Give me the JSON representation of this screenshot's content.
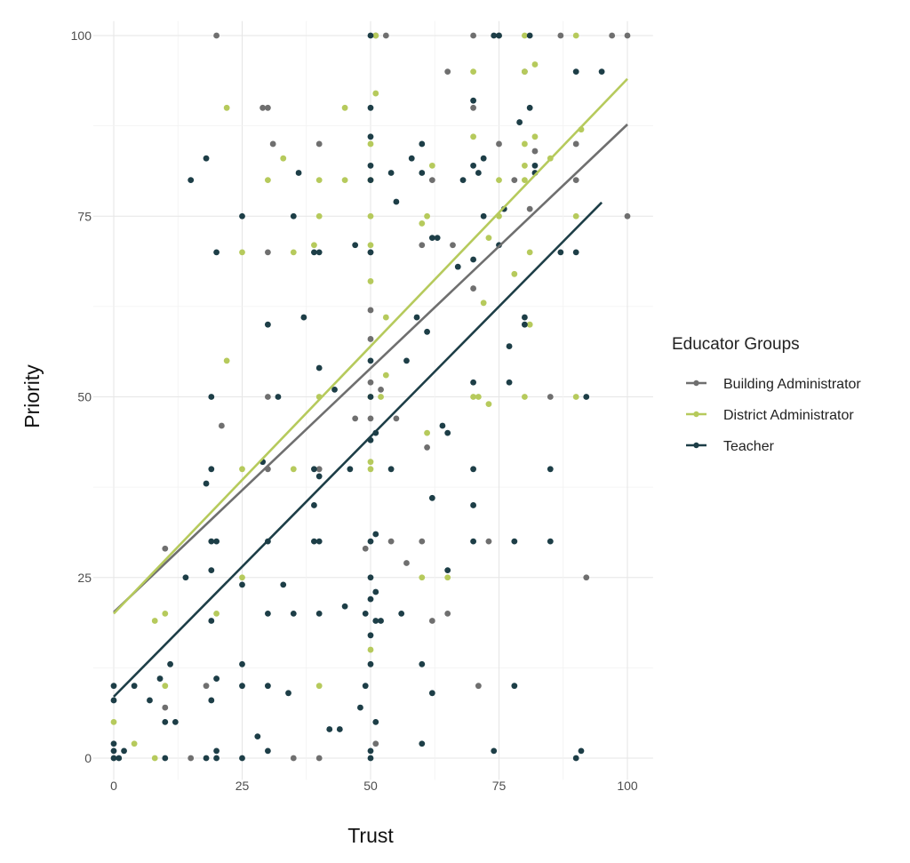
{
  "chart_data": {
    "type": "scatter",
    "title": "",
    "xlabel": "Trust",
    "ylabel": "Priority",
    "xlim": [
      -4,
      105
    ],
    "ylim": [
      -3,
      102
    ],
    "xticks": [
      0,
      25,
      50,
      75,
      100
    ],
    "yticks": [
      0,
      25,
      50,
      75,
      100
    ],
    "xtick_labels": [
      "0",
      "25",
      "50",
      "75",
      "100"
    ],
    "ytick_labels": [
      "0",
      "25",
      "50",
      "75",
      "100"
    ],
    "grid": true,
    "legend": {
      "title": "Educator Groups",
      "placement": "right"
    },
    "series": [
      {
        "name": "Building Administrator",
        "color": "#6f6f6f",
        "fit": {
          "intercept": 20.2,
          "slope": 0.675,
          "x_range": [
            0,
            100
          ]
        },
        "points": [
          [
            10,
            29
          ],
          [
            10,
            7
          ],
          [
            15,
            0
          ],
          [
            18,
            10
          ],
          [
            20,
            100
          ],
          [
            21,
            46
          ],
          [
            29,
            90
          ],
          [
            30,
            90
          ],
          [
            30,
            70
          ],
          [
            30,
            50
          ],
          [
            30,
            40
          ],
          [
            31,
            85
          ],
          [
            35,
            0
          ],
          [
            40,
            85
          ],
          [
            40,
            0
          ],
          [
            40,
            40
          ],
          [
            47,
            47
          ],
          [
            49,
            29
          ],
          [
            50,
            70
          ],
          [
            50,
            62
          ],
          [
            50,
            58
          ],
          [
            50,
            52
          ],
          [
            50,
            47
          ],
          [
            51,
            2
          ],
          [
            51,
            100
          ],
          [
            53,
            100
          ],
          [
            52,
            51
          ],
          [
            54,
            30
          ],
          [
            55,
            47
          ],
          [
            57,
            27
          ],
          [
            60,
            71
          ],
          [
            60,
            30
          ],
          [
            61,
            43
          ],
          [
            62,
            19
          ],
          [
            62,
            80
          ],
          [
            65,
            95
          ],
          [
            65,
            20
          ],
          [
            66,
            71
          ],
          [
            70,
            100
          ],
          [
            70,
            90
          ],
          [
            70,
            65
          ],
          [
            71,
            10
          ],
          [
            73,
            30
          ],
          [
            75,
            85
          ],
          [
            75,
            100
          ],
          [
            78,
            80
          ],
          [
            80,
            95
          ],
          [
            81,
            76
          ],
          [
            82,
            84
          ],
          [
            85,
            50
          ],
          [
            87,
            100
          ],
          [
            90,
            85
          ],
          [
            90,
            80
          ],
          [
            92,
            25
          ],
          [
            97,
            100
          ],
          [
            100,
            100
          ],
          [
            100,
            75
          ]
        ]
      },
      {
        "name": "District Administrator",
        "color": "#b6ca5c",
        "fit": {
          "intercept": 20.0,
          "slope": 0.74,
          "x_range": [
            0,
            100
          ]
        },
        "points": [
          [
            0,
            5
          ],
          [
            4,
            2
          ],
          [
            8,
            0
          ],
          [
            8,
            19
          ],
          [
            10,
            20
          ],
          [
            10,
            10
          ],
          [
            20,
            20
          ],
          [
            22,
            90
          ],
          [
            22,
            55
          ],
          [
            25,
            70
          ],
          [
            25,
            40
          ],
          [
            25,
            25
          ],
          [
            30,
            80
          ],
          [
            33,
            83
          ],
          [
            35,
            70
          ],
          [
            35,
            40
          ],
          [
            39,
            71
          ],
          [
            40,
            80
          ],
          [
            40,
            75
          ],
          [
            40,
            50
          ],
          [
            40,
            10
          ],
          [
            45,
            80
          ],
          [
            45,
            90
          ],
          [
            50,
            85
          ],
          [
            50,
            80
          ],
          [
            50,
            75
          ],
          [
            50,
            71
          ],
          [
            50,
            66
          ],
          [
            50,
            50
          ],
          [
            50,
            41
          ],
          [
            50,
            40
          ],
          [
            50,
            15
          ],
          [
            51,
            100
          ],
          [
            51,
            92
          ],
          [
            52,
            50
          ],
          [
            53,
            53
          ],
          [
            53,
            61
          ],
          [
            60,
            74
          ],
          [
            60,
            25
          ],
          [
            61,
            45
          ],
          [
            61,
            75
          ],
          [
            62,
            82
          ],
          [
            65,
            25
          ],
          [
            70,
            95
          ],
          [
            70,
            86
          ],
          [
            70,
            50
          ],
          [
            71,
            50
          ],
          [
            72,
            63
          ],
          [
            73,
            49
          ],
          [
            73,
            72
          ],
          [
            75,
            80
          ],
          [
            75,
            75
          ],
          [
            78,
            67
          ],
          [
            80,
            100
          ],
          [
            80,
            95
          ],
          [
            80,
            85
          ],
          [
            80,
            80
          ],
          [
            80,
            82
          ],
          [
            80,
            50
          ],
          [
            81,
            70
          ],
          [
            81,
            60
          ],
          [
            82,
            96
          ],
          [
            82,
            86
          ],
          [
            85,
            83
          ],
          [
            90,
            100
          ],
          [
            90,
            75
          ],
          [
            90,
            50
          ],
          [
            91,
            87
          ]
        ]
      },
      {
        "name": "Teacher",
        "color": "#1d3e47",
        "fit": {
          "intercept": 8.5,
          "slope": 0.72,
          "x_range": [
            0,
            95
          ]
        },
        "points": [
          [
            0,
            10
          ],
          [
            0,
            8
          ],
          [
            0,
            2
          ],
          [
            0,
            1
          ],
          [
            0,
            0
          ],
          [
            1,
            0
          ],
          [
            2,
            1
          ],
          [
            4,
            10
          ],
          [
            7,
            8
          ],
          [
            9,
            11
          ],
          [
            10,
            0
          ],
          [
            10,
            5
          ],
          [
            11,
            13
          ],
          [
            12,
            5
          ],
          [
            14,
            25
          ],
          [
            15,
            80
          ],
          [
            18,
            83
          ],
          [
            18,
            38
          ],
          [
            19,
            40
          ],
          [
            19,
            50
          ],
          [
            19,
            30
          ],
          [
            19,
            26
          ],
          [
            19,
            19
          ],
          [
            19,
            8
          ],
          [
            18,
            0
          ],
          [
            20,
            70
          ],
          [
            20,
            30
          ],
          [
            20,
            11
          ],
          [
            20,
            1
          ],
          [
            20,
            0
          ],
          [
            25,
            75
          ],
          [
            25,
            24
          ],
          [
            25,
            13
          ],
          [
            25,
            10
          ],
          [
            25,
            0
          ],
          [
            28,
            3
          ],
          [
            29,
            41
          ],
          [
            30,
            60
          ],
          [
            30,
            30
          ],
          [
            30,
            20
          ],
          [
            30,
            10
          ],
          [
            30,
            1
          ],
          [
            32,
            50
          ],
          [
            33,
            24
          ],
          [
            34,
            9
          ],
          [
            35,
            20
          ],
          [
            35,
            75
          ],
          [
            36,
            81
          ],
          [
            37,
            61
          ],
          [
            39,
            35
          ],
          [
            39,
            30
          ],
          [
            39,
            40
          ],
          [
            40,
            30
          ],
          [
            40,
            39
          ],
          [
            40,
            54
          ],
          [
            40,
            70
          ],
          [
            39,
            70
          ],
          [
            40,
            20
          ],
          [
            42,
            4
          ],
          [
            43,
            51
          ],
          [
            44,
            4
          ],
          [
            45,
            21
          ],
          [
            46,
            40
          ],
          [
            47,
            71
          ],
          [
            48,
            7
          ],
          [
            49,
            20
          ],
          [
            49,
            10
          ],
          [
            50,
            100
          ],
          [
            50,
            90
          ],
          [
            50,
            86
          ],
          [
            50,
            82
          ],
          [
            50,
            80
          ],
          [
            50,
            70
          ],
          [
            50,
            55
          ],
          [
            50,
            50
          ],
          [
            50,
            44
          ],
          [
            50,
            30
          ],
          [
            50,
            25
          ],
          [
            50,
            22
          ],
          [
            50,
            17
          ],
          [
            50,
            13
          ],
          [
            50,
            1
          ],
          [
            50,
            0
          ],
          [
            51,
            31
          ],
          [
            51,
            45
          ],
          [
            51,
            23
          ],
          [
            51,
            19
          ],
          [
            52,
            19
          ],
          [
            51,
            5
          ],
          [
            54,
            81
          ],
          [
            54,
            40
          ],
          [
            55,
            77
          ],
          [
            56,
            20
          ],
          [
            57,
            55
          ],
          [
            58,
            83
          ],
          [
            59,
            61
          ],
          [
            60,
            85
          ],
          [
            60,
            81
          ],
          [
            60,
            2
          ],
          [
            60,
            13
          ],
          [
            61,
            59
          ],
          [
            62,
            72
          ],
          [
            62,
            36
          ],
          [
            62,
            9
          ],
          [
            63,
            72
          ],
          [
            64,
            46
          ],
          [
            65,
            45
          ],
          [
            65,
            26
          ],
          [
            67,
            68
          ],
          [
            68,
            80
          ],
          [
            70,
            91
          ],
          [
            70,
            82
          ],
          [
            70,
            69
          ],
          [
            70,
            52
          ],
          [
            70,
            40
          ],
          [
            70,
            35
          ],
          [
            70,
            30
          ],
          [
            71,
            81
          ],
          [
            72,
            83
          ],
          [
            72,
            75
          ],
          [
            74,
            1
          ],
          [
            74,
            100
          ],
          [
            75,
            100
          ],
          [
            75,
            71
          ],
          [
            76,
            76
          ],
          [
            77,
            57
          ],
          [
            77,
            52
          ],
          [
            78,
            30
          ],
          [
            78,
            10
          ],
          [
            79,
            88
          ],
          [
            80,
            60
          ],
          [
            80,
            61
          ],
          [
            81,
            100
          ],
          [
            81,
            90
          ],
          [
            82,
            81
          ],
          [
            82,
            82
          ],
          [
            85,
            40
          ],
          [
            85,
            30
          ],
          [
            87,
            70
          ],
          [
            90,
            70
          ],
          [
            90,
            95
          ],
          [
            90,
            0
          ],
          [
            91,
            1
          ],
          [
            92,
            50
          ],
          [
            95,
            95
          ]
        ]
      }
    ]
  }
}
